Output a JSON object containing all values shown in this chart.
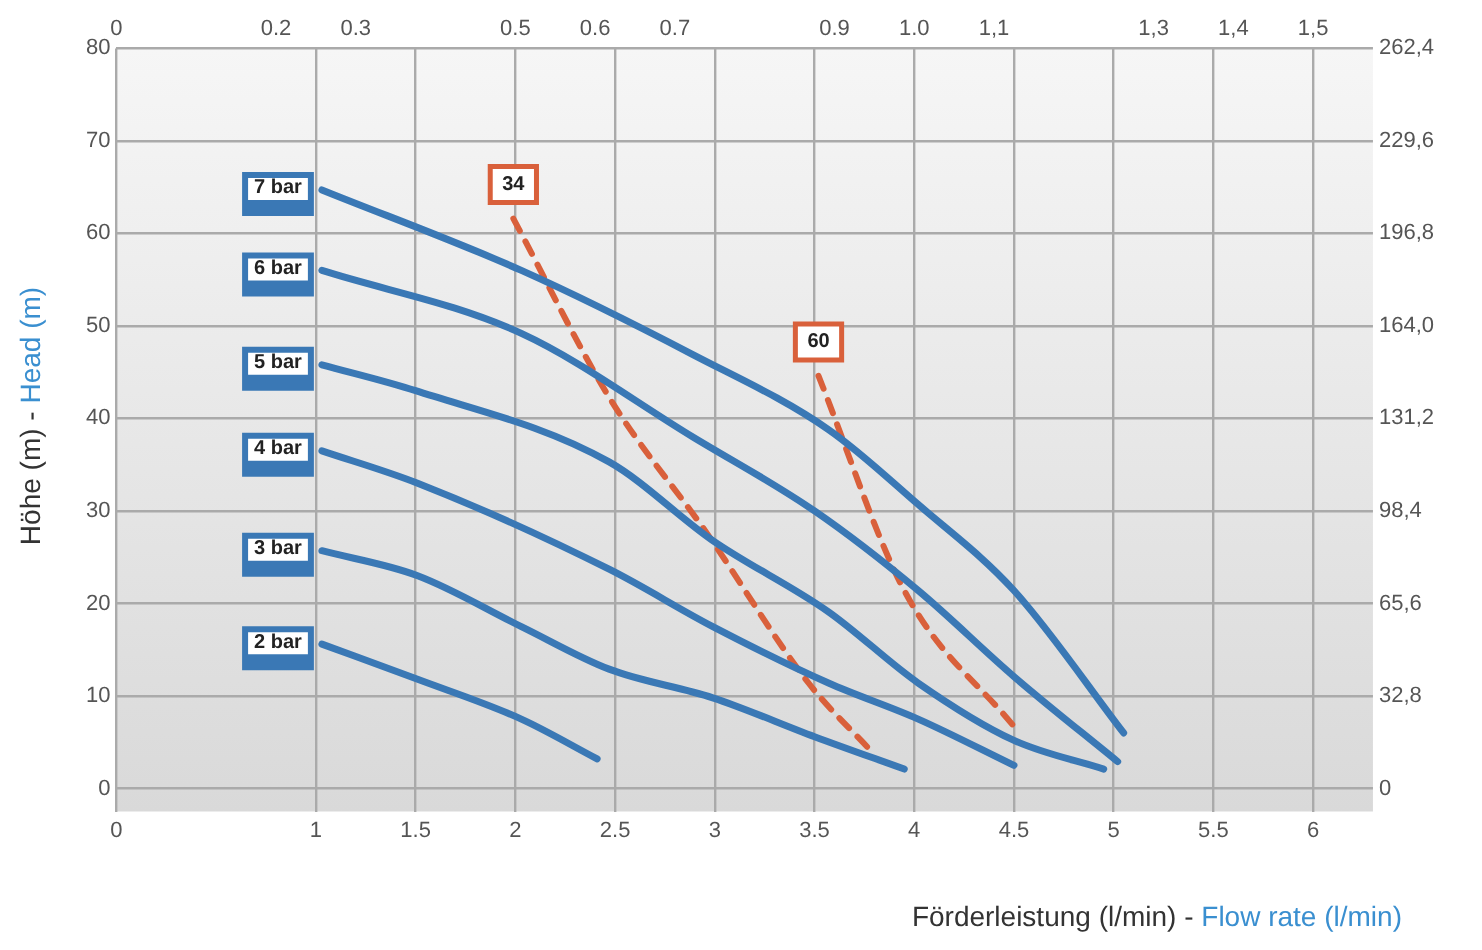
{
  "chart_data": {
    "type": "line",
    "xlabel": "Förderleistung (l/min) - Flow rate (l/min)",
    "ylabel": "Höhe (m) - Head (m)",
    "xlim": [
      0,
      6.3
    ],
    "xticks": [
      0,
      1,
      1.5,
      2,
      2.5,
      3,
      3.5,
      4,
      4.5,
      5,
      5.5,
      6
    ],
    "x2lim": [
      0,
      1.575
    ],
    "x2ticks": [
      0,
      0.2,
      0.3,
      0.5,
      0.6,
      0.7,
      0.9,
      {
        "value": 1,
        "label": "1.0"
      },
      {
        "value": 1.1,
        "label": "1,1"
      },
      {
        "value": 1.3,
        "label": "1,3"
      },
      {
        "value": 1.4,
        "label": "1,4"
      },
      {
        "value": 1.5,
        "label": "1,5"
      }
    ],
    "ylim": [
      -2.5,
      80
    ],
    "yticks": [
      0,
      10,
      20,
      30,
      40,
      50,
      60,
      70,
      80
    ],
    "y2lim": [
      -8.2,
      262.4
    ],
    "y2ticks": [
      0,
      {
        "value": 32.8,
        "label": "32,8"
      },
      {
        "value": 65.6,
        "label": "65,6"
      },
      {
        "value": 98.4,
        "label": "98,4"
      },
      {
        "value": 131.2,
        "label": "131,2"
      },
      {
        "value": 164,
        "label": "164,0"
      },
      {
        "value": 196.8,
        "label": "196,8"
      },
      {
        "value": 229.6,
        "label": "229,6"
      },
      {
        "value": 262.4,
        "label": "262,4"
      }
    ],
    "grid": true,
    "legend": false,
    "marker": "none",
    "series": [
      {
        "name": "7 bar",
        "color": "#3a78b5",
        "line_style": "solid",
        "x": [
          1.03,
          2.03,
          2.89,
          3.57,
          4.02,
          4.5,
          5.05
        ],
        "values": [
          64.7,
          56,
          46.9,
          38.8,
          30.7,
          21.4,
          6
        ]
      },
      {
        "name": "6 bar",
        "color": "#3a78b5",
        "line_style": "solid",
        "x": [
          1.03,
          2.03,
          2.89,
          3.5,
          4.02,
          4.5,
          5.02
        ],
        "values": [
          56,
          49.2,
          38,
          30,
          21.4,
          12.1,
          2.9
        ]
      },
      {
        "name": "5 bar",
        "color": "#3a78b5",
        "line_style": "solid",
        "x": [
          1.03,
          1.5,
          2.47,
          2.99,
          3.57,
          4.02,
          4.5,
          4.95
        ],
        "values": [
          45.8,
          43,
          35.3,
          26.8,
          19.1,
          11.4,
          5.2,
          2.1
        ]
      },
      {
        "name": "4 bar",
        "color": "#3a78b5",
        "line_style": "solid",
        "x": [
          1.03,
          1.51,
          2.47,
          2.99,
          3.57,
          4.02,
          4.5
        ],
        "values": [
          36.5,
          33,
          23.7,
          17.5,
          11.4,
          7.5,
          2.5
        ]
      },
      {
        "name": "3 bar",
        "color": "#3a78b5",
        "line_style": "solid",
        "x": [
          1.03,
          1.51,
          2.03,
          2.47,
          2.99,
          3.5,
          3.95
        ],
        "values": [
          25.7,
          23,
          17.5,
          12.9,
          9.8,
          5.6,
          2.1
        ]
      },
      {
        "name": "2 bar",
        "color": "#3a78b5",
        "line_style": "solid",
        "x": [
          1.03,
          1.51,
          2.03,
          2.41
        ],
        "values": [
          15.6,
          11.8,
          7.5,
          3.2
        ]
      },
      {
        "name": "34",
        "color": "#d9603b",
        "line_style": "dashed",
        "x": [
          1.99,
          2.47,
          2.96,
          3.47,
          3.79
        ],
        "values": [
          61.6,
          42.3,
          27.6,
          11.4,
          3.9
        ]
      },
      {
        "name": "60",
        "color": "#d9603b",
        "line_style": "dashed",
        "x": [
          3.52,
          3.95,
          4.5
        ],
        "values": [
          44.6,
          21.4,
          6.7
        ]
      }
    ]
  }
}
